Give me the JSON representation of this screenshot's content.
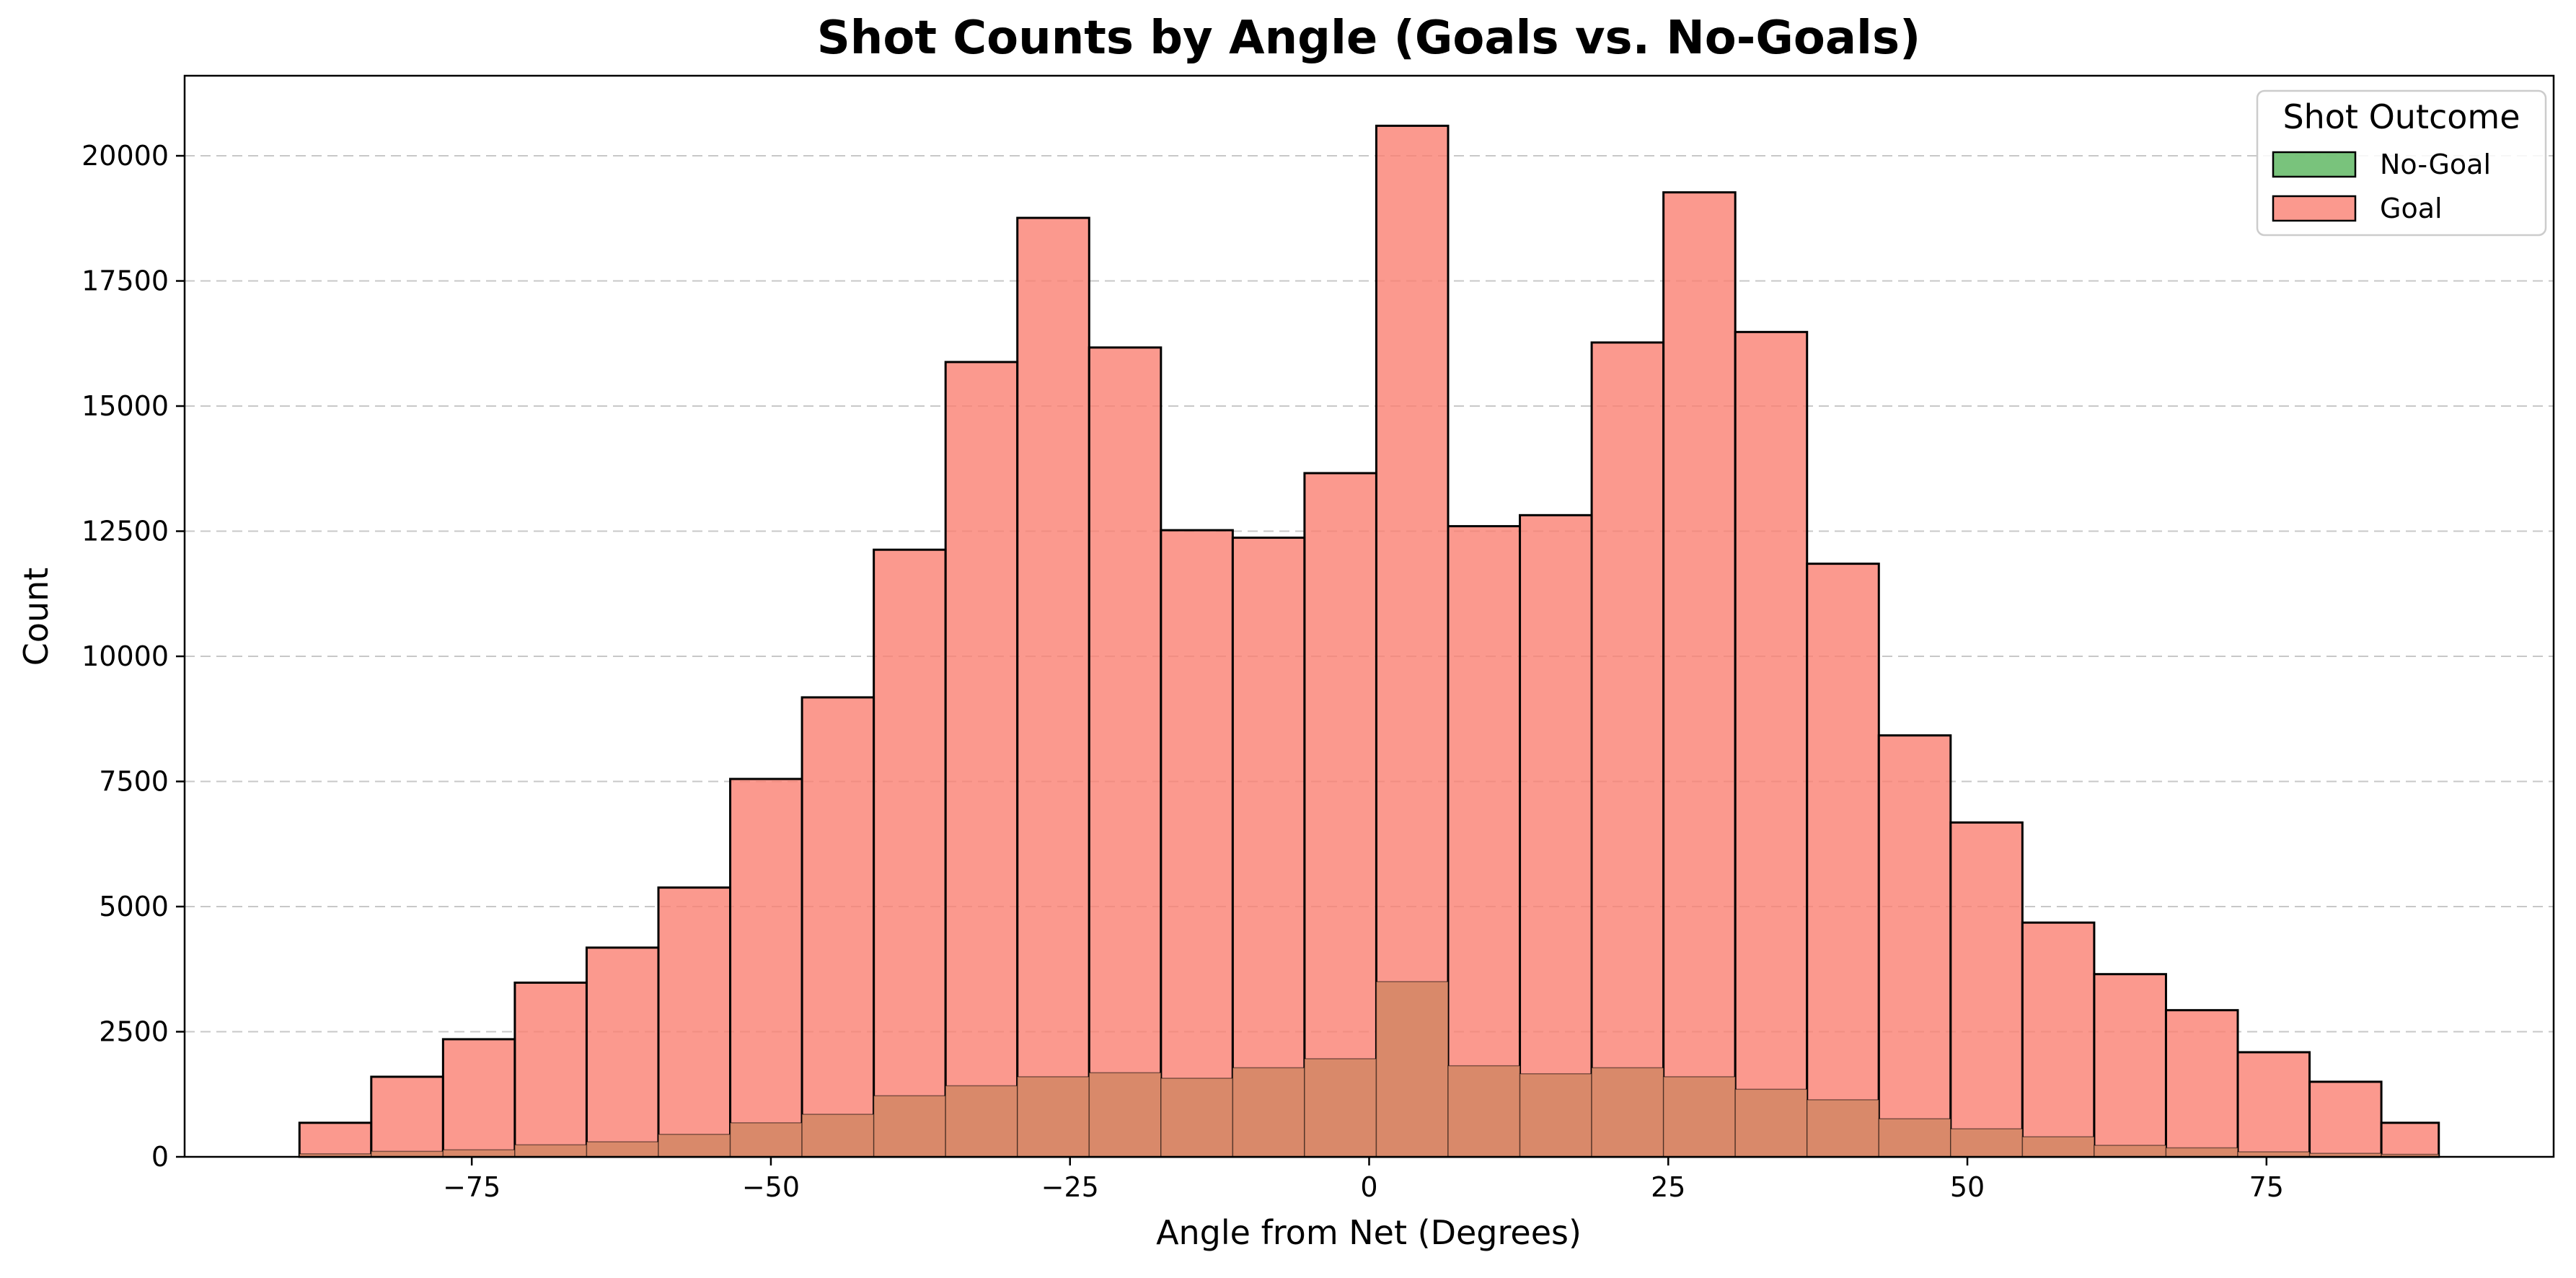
{
  "chart_data": {
    "type": "bar",
    "title": "Shot Counts by Angle (Goals vs. No-Goals)",
    "xlabel": "Angle from Net (Degrees)",
    "ylabel": "Count",
    "xlim": [
      -99,
      99
    ],
    "ylim": [
      0,
      21600
    ],
    "xticks": [
      -75,
      -50,
      -25,
      0,
      25,
      50,
      75
    ],
    "xtick_labels": [
      "−75",
      "−50",
      "−25",
      "0",
      "25",
      "50",
      "75"
    ],
    "yticks": [
      0,
      2500,
      5000,
      7500,
      10000,
      12500,
      15000,
      17500,
      20000
    ],
    "ytick_labels": [
      "0",
      "2500",
      "5000",
      "7500",
      "10000",
      "12500",
      "15000",
      "17500",
      "20000"
    ],
    "grid": "y-dashed",
    "legend": {
      "title": "Shot Outcome",
      "placement": "top-right",
      "entries": [
        "No-Goal",
        "Goal"
      ]
    },
    "bin_edges": [
      -89.4,
      -83.4,
      -77.4,
      -71.4,
      -65.4,
      -59.4,
      -53.4,
      -47.4,
      -41.4,
      -35.4,
      -29.4,
      -23.4,
      -17.4,
      -11.4,
      -5.4,
      0.6,
      6.6,
      12.6,
      18.6,
      24.6,
      30.6,
      36.6,
      42.6,
      48.6,
      54.6,
      60.6,
      66.6,
      72.6,
      78.6,
      84.6,
      89.4
    ],
    "series": [
      {
        "name": "Goal",
        "color": "#fa8072",
        "values": [
          680,
          1600,
          2350,
          3480,
          4180,
          5380,
          7550,
          9180,
          12130,
          15880,
          18760,
          16170,
          12520,
          12370,
          13660,
          20600,
          12600,
          12820,
          16270,
          19270,
          16480,
          11850,
          8420,
          6680,
          4680,
          3650,
          2930,
          2090,
          1500,
          680
        ]
      },
      {
        "name": "No-Goal",
        "color": "#4caf50",
        "values": [
          60,
          110,
          140,
          240,
          300,
          450,
          680,
          850,
          1220,
          1420,
          1600,
          1680,
          1570,
          1780,
          1960,
          3500,
          1820,
          1660,
          1780,
          1600,
          1350,
          1140,
          760,
          560,
          400,
          230,
          180,
          100,
          70,
          50
        ]
      }
    ],
    "overlap_color": "#d9896a"
  }
}
